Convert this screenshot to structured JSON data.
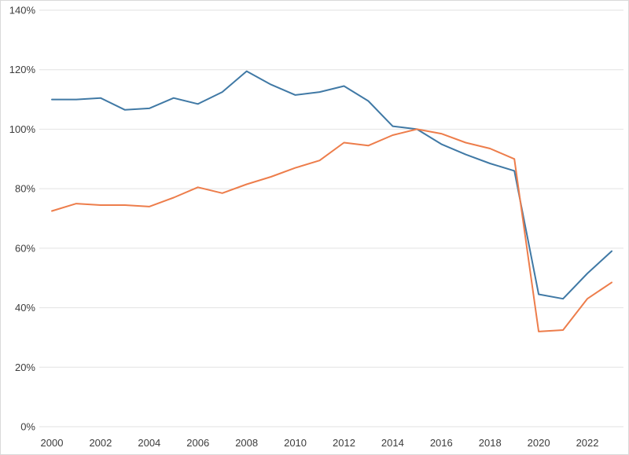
{
  "chart_data": {
    "type": "line",
    "title": "",
    "xlabel": "",
    "ylabel": "",
    "x": [
      2000,
      2001,
      2002,
      2003,
      2004,
      2005,
      2006,
      2007,
      2008,
      2009,
      2010,
      2011,
      2012,
      2013,
      2014,
      2015,
      2016,
      2017,
      2018,
      2019,
      2020,
      2021,
      2022,
      2023
    ],
    "series": [
      {
        "name": "blue",
        "color": "#4079a5",
        "values": [
          110,
          110,
          110.5,
          106.5,
          107,
          110.5,
          108.5,
          112.5,
          119.5,
          115,
          111.5,
          112.5,
          114.5,
          109.5,
          101,
          100,
          95,
          91.5,
          88.5,
          86,
          44.5,
          43,
          51.5,
          59
        ]
      },
      {
        "name": "orange",
        "color": "#ed7d4b",
        "values": [
          72.5,
          75,
          74.5,
          74.5,
          74,
          77,
          80.5,
          78.5,
          81.5,
          84,
          87,
          89.5,
          95.5,
          94.5,
          98,
          100,
          98.5,
          95.5,
          93.5,
          90,
          32,
          32.5,
          43,
          48.5
        ]
      }
    ],
    "ylim": [
      0,
      140
    ],
    "y_ticks": [
      0,
      20,
      40,
      60,
      80,
      100,
      120,
      140
    ],
    "y_tick_labels": [
      "0%",
      "20%",
      "40%",
      "60%",
      "80%",
      "100%",
      "120%",
      "140%"
    ],
    "x_ticks": [
      2000,
      2002,
      2004,
      2006,
      2008,
      2010,
      2012,
      2014,
      2016,
      2018,
      2020,
      2022
    ],
    "x_tick_labels": [
      "2000",
      "2002",
      "2004",
      "2006",
      "2008",
      "2010",
      "2012",
      "2014",
      "2016",
      "2018",
      "2020",
      "2022"
    ],
    "grid": "horizontal-only",
    "legend": "none",
    "background_color": "#ffffff",
    "gridline_color": "#e2e2e2",
    "border_color": "#d9d9d9",
    "tick_label_color": "#3c3c3c"
  }
}
